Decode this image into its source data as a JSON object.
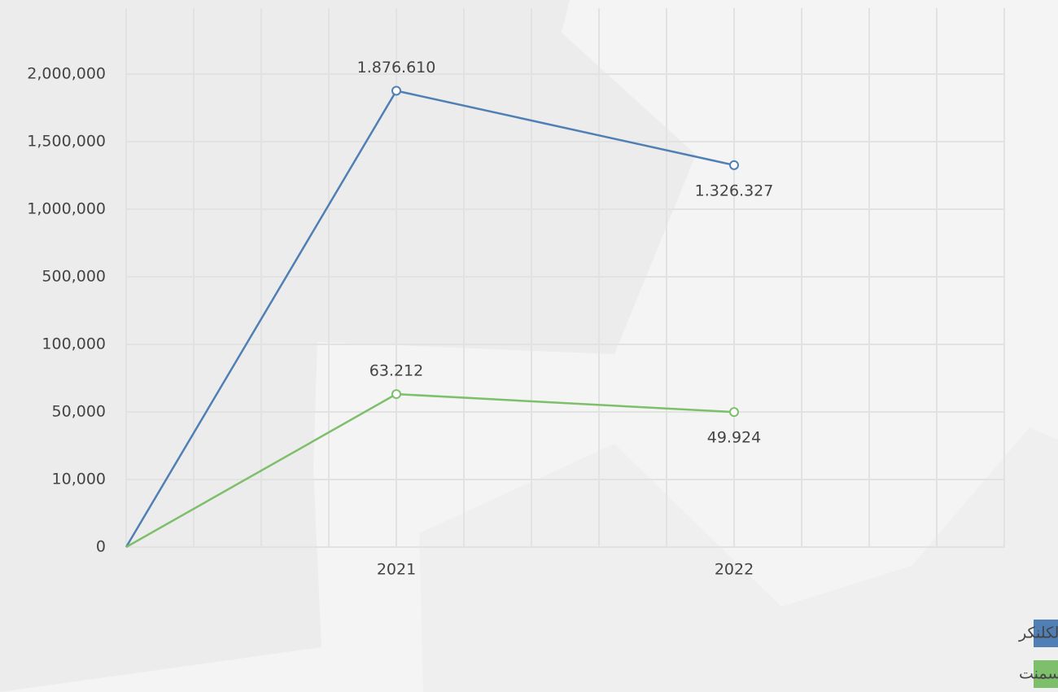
{
  "chart_data": {
    "type": "line",
    "categories": [
      null,
      "2021",
      "2022"
    ],
    "series": [
      {
        "name": "مخزون الكلنكر",
        "color": "#4f7fb5",
        "values": [
          0,
          1876610,
          1326327
        ],
        "value_labels": [
          null,
          "1.876.610",
          "1.326.327"
        ]
      },
      {
        "name": "مخزون الإسمنت",
        "color": "#7dbf6b",
        "values": [
          0,
          63212,
          49924
        ],
        "value_labels": [
          null,
          "63.212",
          "49.924"
        ]
      }
    ],
    "ylim": [
      0,
      2000000
    ],
    "yticks": [
      0,
      {
        "value": 10000,
        "label": "10,000"
      },
      {
        "value": 50000,
        "label": "50,000"
      },
      {
        "value": 100000,
        "label": "100,000"
      },
      {
        "value": 500000,
        "label": "500,000"
      },
      {
        "value": 1000000,
        "label": "1,000,000"
      },
      {
        "value": 1500000,
        "label": "1,500,000"
      },
      {
        "value": 2000000,
        "label": "2,000,000"
      }
    ],
    "grid": true,
    "legend": "bottom-right"
  }
}
